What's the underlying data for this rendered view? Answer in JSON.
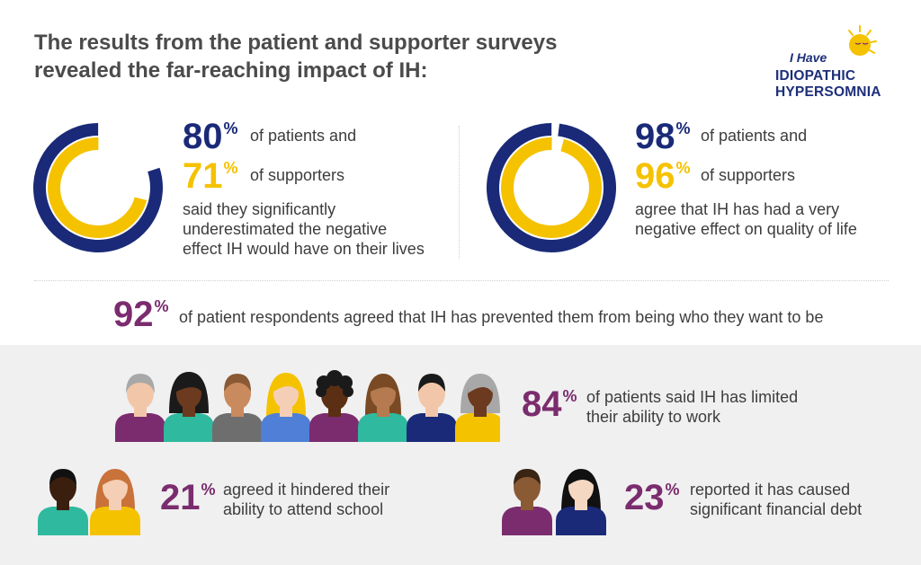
{
  "title": {
    "line1": "The results from the patient and supporter surveys",
    "line2": "revealed the far-reaching impact of IH:"
  },
  "logo": {
    "line1": "I Have",
    "line2": "IDIOPATHIC",
    "line3": "HYPERSOMNIA",
    "icon": "moon-sun-icon"
  },
  "colors": {
    "navy": "#1a2a78",
    "gold": "#f5c200",
    "plum": "#7b2c6e",
    "panel": "#f0f0f0"
  },
  "stats": {
    "left": {
      "patients_value": "80",
      "patients_pct": 0.8,
      "patients_text": "of patients and",
      "supporters_value": "71",
      "supporters_pct": 0.71,
      "supporters_text": "of supporters",
      "desc1": "said they significantly",
      "desc2": "underestimated the negative",
      "desc3": "effect IH would have on their lives"
    },
    "right": {
      "patients_value": "98",
      "patients_pct": 0.98,
      "patients_text": "of patients and",
      "supporters_value": "96",
      "supporters_pct": 0.96,
      "supporters_text": "of supporters",
      "desc1": "agree that IH has had a very",
      "desc2": "negative effect on quality of life"
    },
    "middle": {
      "value": "92",
      "text": "of patient respondents agreed that IH has prevented them from being who they want to be"
    },
    "work": {
      "value": "84",
      "text1": "of patients said IH has limited",
      "text2": "their ability to work"
    },
    "school": {
      "value": "21",
      "text1": "agreed it hindered their",
      "text2": "ability to attend school"
    },
    "debt": {
      "value": "23",
      "text1": "reported it has caused",
      "text2": "significant financial debt"
    }
  },
  "percent_sign": "%"
}
